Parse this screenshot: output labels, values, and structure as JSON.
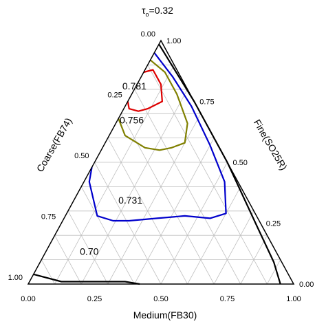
{
  "chart_data": {
    "type": "ternary-contour",
    "title": "τ",
    "title_subscript": "o",
    "title_suffix": "=0.32",
    "axes": {
      "bottom": {
        "label": "Medium(FB30)",
        "ticks": [
          "0.00",
          "0.25",
          "0.50",
          "0.75",
          "1.00"
        ]
      },
      "left": {
        "label": "Coarse(FB74)",
        "ticks": [
          "0.00",
          "0.25",
          "0.50",
          "0.75",
          "1.00"
        ]
      },
      "right": {
        "label": "Fine(SO25R)",
        "ticks": [
          "1.00",
          "0.75",
          "0.50",
          "0.25",
          "0.00"
        ]
      }
    },
    "grid": true,
    "contours": [
      {
        "label": "0.70",
        "color": "#000000",
        "label_at": [
          0.17,
          0.71
        ],
        "points": [
          [
            0.0,
            0.96
          ],
          [
            0.12,
            0.87
          ],
          [
            0.25,
            0.74
          ],
          [
            0.36,
            0.63
          ],
          [
            0.42,
            0.58
          ]
        ]
      },
      {
        "label": "0.70",
        "color": "#000000",
        "points": [
          [
            0.0,
            0.015
          ],
          [
            0.25,
            0.0
          ],
          [
            0.5,
            0.0
          ],
          [
            0.75,
            0.02
          ],
          [
            0.88,
            0.03
          ],
          [
            0.95,
            0.05
          ]
        ]
      },
      {
        "label": "0.731",
        "color": "#0000cc",
        "label_at": [
          0.22,
          0.45
        ],
        "points": [
          [
            0.0,
            0.05
          ],
          [
            0.12,
            0.03
          ],
          [
            0.25,
            0.02
          ],
          [
            0.4,
            0.03
          ],
          [
            0.53,
            0.05
          ],
          [
            0.6,
            0.11
          ],
          [
            0.55,
            0.18
          ],
          [
            0.45,
            0.27
          ],
          [
            0.35,
            0.38
          ],
          [
            0.25,
            0.49
          ],
          [
            0.19,
            0.55
          ],
          [
            0.12,
            0.6
          ],
          [
            0.02,
            0.56
          ],
          [
            0.0,
            0.52
          ]
        ]
      },
      {
        "label": "0.756",
        "color": "#808000",
        "label_at": [
          0.06,
          0.28
        ],
        "points": [
          [
            0.0,
            0.08
          ],
          [
            0.08,
            0.05
          ],
          [
            0.17,
            0.05
          ],
          [
            0.27,
            0.07
          ],
          [
            0.3,
            0.12
          ],
          [
            0.26,
            0.18
          ],
          [
            0.22,
            0.23
          ],
          [
            0.16,
            0.28
          ],
          [
            0.06,
            0.33
          ],
          [
            0.0,
            0.32
          ]
        ]
      },
      {
        "label": "0.781",
        "color": "#dd0000",
        "label_at": [
          0.0,
          0.2
        ],
        "points": [
          [
            0.0,
            0.13
          ],
          [
            0.03,
            0.09
          ],
          [
            0.09,
            0.09
          ],
          [
            0.13,
            0.12
          ],
          [
            0.09,
            0.19
          ],
          [
            0.06,
            0.23
          ],
          [
            0.02,
            0.26
          ],
          [
            0.0,
            0.25
          ]
        ]
      }
    ]
  }
}
